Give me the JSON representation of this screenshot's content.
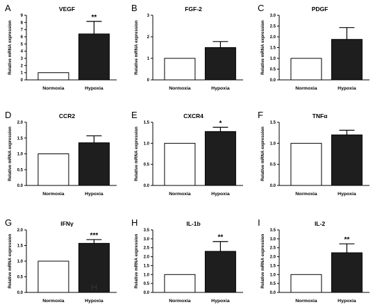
{
  "colors": {
    "normoxia": "#ffffff",
    "hypoxia": "#1e1e1e",
    "axis": "#000000",
    "bar_outline": "#000000"
  },
  "chart_data": [
    {
      "type": "bar",
      "panel": "A",
      "title": "VEGF",
      "ylabel": "Relative mRNA expression",
      "categories": [
        "Normoxia",
        "Hypoxia"
      ],
      "values": [
        1,
        6.4
      ],
      "errors": [
        0,
        1.75
      ],
      "ylim": [
        0,
        9
      ],
      "yticks": [
        "0",
        "1",
        "2",
        "3",
        "4",
        "5",
        "6",
        "7",
        "8",
        "9"
      ],
      "significance": "**"
    },
    {
      "type": "bar",
      "panel": "B",
      "title": "FGF-2",
      "ylabel": "Relative mRNA expression",
      "categories": [
        "Normoxia",
        "Hypoxia"
      ],
      "values": [
        1,
        1.5
      ],
      "errors": [
        0,
        0.28
      ],
      "ylim": [
        0,
        3
      ],
      "yticks": [
        "0",
        "1",
        "2",
        "3"
      ],
      "significance": ""
    },
    {
      "type": "bar",
      "panel": "C",
      "title": "PDGF",
      "ylabel": "Relative mRNA expression",
      "categories": [
        "Normoxia",
        "Hypoxia"
      ],
      "values": [
        1,
        1.88
      ],
      "errors": [
        0,
        0.55
      ],
      "ylim": [
        0,
        3
      ],
      "yticks": [
        "0.0",
        "0.5",
        "1.0",
        "1.5",
        "2.0",
        "2.5",
        "3.0"
      ],
      "significance": ""
    },
    {
      "type": "bar",
      "panel": "D",
      "title": "CCR2",
      "ylabel": "Relative mRNA expression",
      "categories": [
        "Normoxia",
        "Hypoxia"
      ],
      "values": [
        1,
        1.35
      ],
      "errors": [
        0,
        0.22
      ],
      "ylim": [
        0,
        2
      ],
      "yticks": [
        "0.0",
        "0.5",
        "1.0",
        "1.5",
        "2.0"
      ],
      "significance": ""
    },
    {
      "type": "bar",
      "panel": "E",
      "title": "CXCR4",
      "ylabel": "Relative mRNA expression",
      "categories": [
        "Normoxia",
        "Hypoxia"
      ],
      "values": [
        1,
        1.28
      ],
      "errors": [
        0,
        0.1
      ],
      "ylim": [
        0,
        1.5
      ],
      "yticks": [
        "0.0",
        "0.5",
        "1.0",
        "1.5"
      ],
      "significance": "*"
    },
    {
      "type": "bar",
      "panel": "F",
      "title": "TNFα",
      "ylabel": "Relative mRNA expression",
      "categories": [
        "Normoxia",
        "Hypoxia"
      ],
      "values": [
        1,
        1.2
      ],
      "errors": [
        0,
        0.11
      ],
      "ylim": [
        0,
        1.5
      ],
      "yticks": [
        "0.0",
        "0.5",
        "1.0",
        "1.5"
      ],
      "significance": ""
    },
    {
      "type": "bar",
      "panel": "G",
      "title": "IFNγ",
      "ylabel": "Relative mRNA expression",
      "categories": [
        "Normoxia",
        "Hypoxia"
      ],
      "values": [
        1,
        1.57
      ],
      "errors": [
        0,
        0.12
      ],
      "ylim": [
        0,
        2
      ],
      "yticks": [
        "0.0",
        "0.5",
        "1.0",
        "1.5",
        "2.0"
      ],
      "significance": "***",
      "bar_annotation": "H"
    },
    {
      "type": "bar",
      "panel": "H",
      "title": "IL-1b",
      "ylabel": "Relative mRNA expression",
      "categories": [
        "Normoxia",
        "Hypoxia"
      ],
      "values": [
        1,
        2.3
      ],
      "errors": [
        0,
        0.55
      ],
      "ylim": [
        0,
        3.5
      ],
      "yticks": [
        "0.0",
        "0.5",
        "1.0",
        "1.5",
        "2.0",
        "2.5",
        "3.0",
        "3.5"
      ],
      "significance": "**"
    },
    {
      "type": "bar",
      "panel": "I",
      "title": "IL-2",
      "ylabel": "Relative mRNA expression",
      "categories": [
        "Normoxia",
        "Hypoxia"
      ],
      "values": [
        1,
        2.22
      ],
      "errors": [
        0,
        0.5
      ],
      "ylim": [
        0,
        3.5
      ],
      "yticks": [
        "0.0",
        "0.5",
        "1.0",
        "1.5",
        "2.0",
        "2.5",
        "3.0",
        "3.5"
      ],
      "significance": "**"
    }
  ]
}
